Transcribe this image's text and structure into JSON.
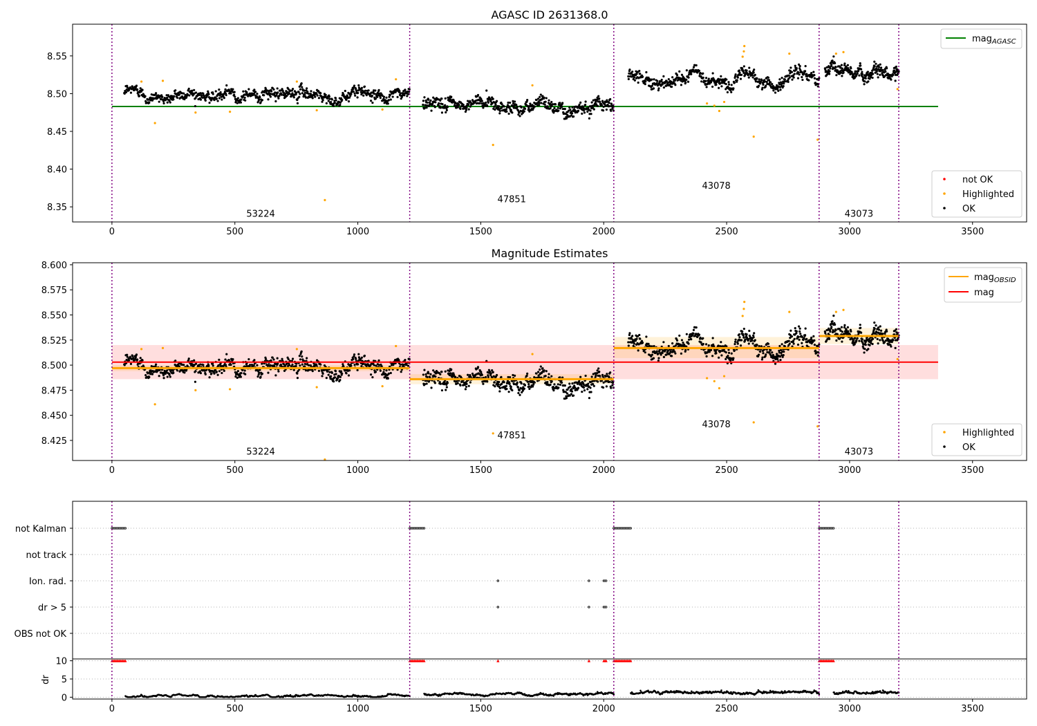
{
  "chart_data": [
    {
      "type": "scatter",
      "title": "AGASC ID 2631368.0",
      "xlim": [
        -160,
        3720
      ],
      "ylim": [
        8.33,
        8.592
      ],
      "xticks": [
        "0",
        "500",
        "1000",
        "1500",
        "2000",
        "2500",
        "3000",
        "3500"
      ],
      "yticks": [
        "8.35",
        "8.40",
        "8.45",
        "8.50",
        "8.55"
      ],
      "boundaries": [
        0,
        1211,
        2041,
        2876,
        3200
      ],
      "obsids": [
        {
          "label": "53224",
          "x": 605,
          "y": 8.337
        },
        {
          "label": "47851",
          "x": 1626,
          "y": 8.356
        },
        {
          "label": "43078",
          "x": 2458,
          "y": 8.374
        },
        {
          "label": "43073",
          "x": 3038,
          "y": 8.337
        }
      ],
      "legend_lines": [
        {
          "name": "mag",
          "sub": "AGASC",
          "color": "#008000"
        }
      ],
      "legend_points": [
        {
          "name": "not OK",
          "color": "#ff0000"
        },
        {
          "name": "Highlighted",
          "color": "#ffa500"
        },
        {
          "name": "OK",
          "color": "#000000"
        }
      ],
      "mag_agasc": {
        "value": 8.483,
        "x": [
          0,
          3360
        ]
      },
      "segments": [
        {
          "x": [
            50,
            1210
          ],
          "base": 8.499,
          "amp": 0.004,
          "noise": 0.005,
          "n": 720
        },
        {
          "x": [
            1265,
            2040
          ],
          "base": 8.486,
          "amp": 0.004,
          "noise": 0.006,
          "n": 520
        },
        {
          "x": [
            2100,
            2876
          ],
          "base": 8.519,
          "amp": 0.008,
          "noise": 0.006,
          "n": 520
        },
        {
          "x": [
            2900,
            3200
          ],
          "base": 8.529,
          "amp": 0.003,
          "noise": 0.006,
          "n": 240
        }
      ],
      "highlighted": [
        [
          120,
          8.516
        ],
        [
          175,
          8.461
        ],
        [
          207,
          8.517
        ],
        [
          340,
          8.475
        ],
        [
          480,
          8.476
        ],
        [
          752,
          8.516
        ],
        [
          833,
          8.478
        ],
        [
          866,
          8.359
        ],
        [
          1100,
          8.479
        ],
        [
          1155,
          8.519
        ],
        [
          1710,
          8.511
        ],
        [
          1550,
          8.432
        ],
        [
          2420,
          8.487
        ],
        [
          2450,
          8.484
        ],
        [
          2470,
          8.477
        ],
        [
          2490,
          8.489
        ],
        [
          2565,
          8.549
        ],
        [
          2570,
          8.556
        ],
        [
          2572,
          8.563
        ],
        [
          2610,
          8.443
        ],
        [
          2755,
          8.553
        ],
        [
          2870,
          8.439
        ],
        [
          2945,
          8.553
        ],
        [
          2975,
          8.555
        ],
        [
          3195,
          8.506
        ]
      ]
    },
    {
      "type": "scatter",
      "title": "Magnitude Estimates",
      "xlim": [
        -160,
        3720
      ],
      "ylim": [
        8.405,
        8.602
      ],
      "xticks": [
        "0",
        "500",
        "1000",
        "1500",
        "2000",
        "2500",
        "3000",
        "3500"
      ],
      "yticks": [
        "8.425",
        "8.450",
        "8.475",
        "8.500",
        "8.525",
        "8.550",
        "8.575",
        "8.600"
      ],
      "obsids": [
        {
          "label": "53224",
          "x": 605,
          "y": 8.411
        },
        {
          "label": "47851",
          "x": 1626,
          "y": 8.427
        },
        {
          "label": "43078",
          "x": 2458,
          "y": 8.438
        },
        {
          "label": "43073",
          "x": 3038,
          "y": 8.411
        }
      ],
      "legend_lines": [
        {
          "name": "mag",
          "sub": "OBSID",
          "color": "#ffa500"
        },
        {
          "name": "mag",
          "sub": "",
          "color": "#ff0000"
        }
      ],
      "legend_points": [
        {
          "name": "Highlighted",
          "color": "#ffa500"
        },
        {
          "name": "OK",
          "color": "#000000"
        }
      ],
      "mag": {
        "value": 8.503,
        "band": [
          8.486,
          8.52
        ],
        "x": [
          0,
          3360
        ]
      },
      "mag_obsid": [
        {
          "x": [
            0,
            1211
          ],
          "value": 8.497,
          "band": [
            8.494,
            8.5
          ]
        },
        {
          "x": [
            1211,
            2041
          ],
          "value": 8.486,
          "band": [
            8.481,
            8.491
          ]
        },
        {
          "x": [
            2041,
            2876
          ],
          "value": 8.517,
          "band": [
            8.507,
            8.528
          ]
        },
        {
          "x": [
            2876,
            3200
          ],
          "value": 8.529,
          "band": [
            8.521,
            8.537
          ]
        }
      ]
    },
    {
      "type": "scatter",
      "title": "",
      "xlim": [
        -160,
        3720
      ],
      "xticks": [
        "0",
        "500",
        "1000",
        "1500",
        "2000",
        "2500",
        "3000",
        "3500"
      ],
      "flag_rows": [
        "not Kalman",
        "not track",
        "Ion. rad.",
        "dr > 5",
        "OBS not OK"
      ],
      "flags": {
        "not Kalman": [
          [
            0,
            55
          ],
          [
            1211,
            1270
          ],
          [
            2041,
            2110
          ],
          [
            2876,
            2935
          ]
        ],
        "Ion. rad.": [
          [
            1570,
            1570
          ],
          [
            1940,
            1940
          ],
          [
            2000,
            2010
          ]
        ],
        "dr > 5": [
          [
            1570,
            1570
          ],
          [
            1940,
            1940
          ],
          [
            2000,
            2010
          ]
        ]
      },
      "dr": {
        "ylabel": "dr",
        "ylim": [
          -0.5,
          10.5
        ],
        "yticks": [
          "0",
          "5",
          "10"
        ],
        "clipped_at": 10,
        "clipped_ranges": [
          [
            0,
            55
          ],
          [
            1211,
            1270
          ],
          [
            1570,
            1570
          ],
          [
            1940,
            1940
          ],
          [
            2000,
            2010
          ],
          [
            2041,
            2110
          ],
          [
            2876,
            2935
          ]
        ],
        "levels": [
          {
            "x": [
              55,
              1211
            ],
            "value": 0.3
          },
          {
            "x": [
              1270,
              2041
            ],
            "value": 0.7
          },
          {
            "x": [
              2110,
              2876
            ],
            "value": 1.2
          },
          {
            "x": [
              2935,
              3200
            ],
            "value": 1.1
          }
        ]
      }
    }
  ]
}
